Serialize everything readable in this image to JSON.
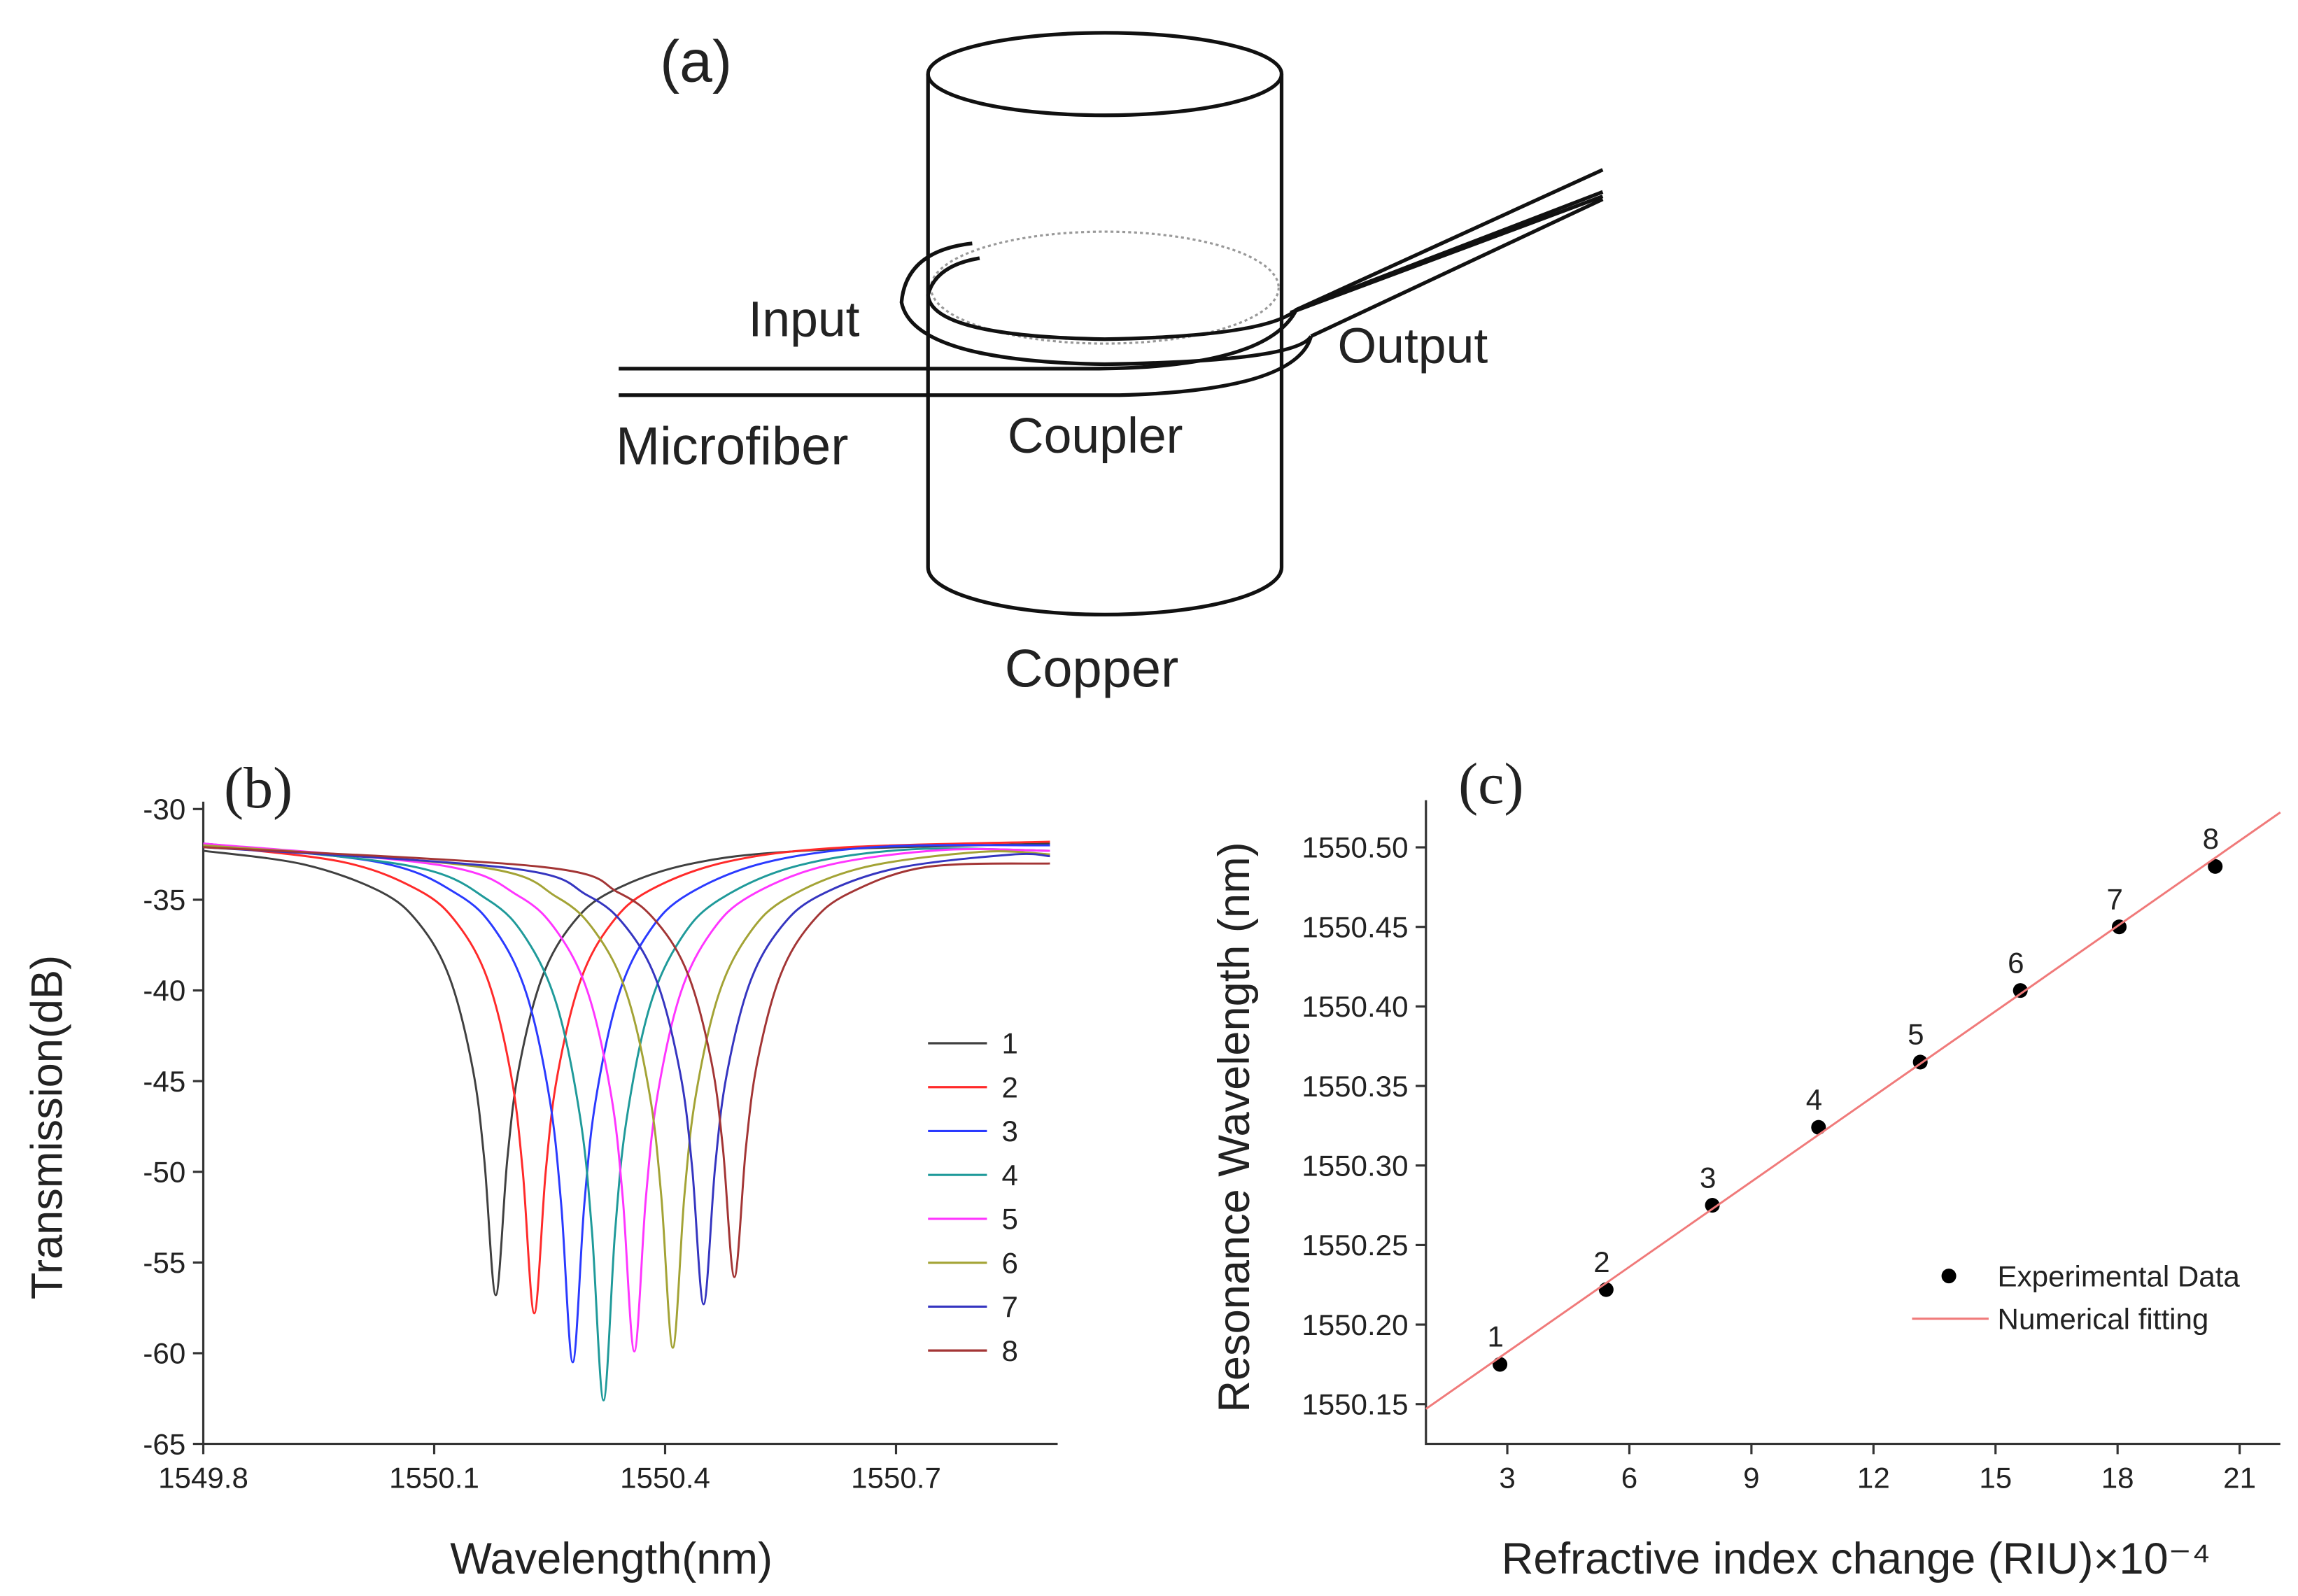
{
  "diagram": {
    "label": "(a)",
    "input": "Input",
    "output": "Output",
    "microfiber": "Microfiber",
    "coupler": "Coupler",
    "copper": "Copper"
  },
  "chart_data": [
    {
      "type": "line",
      "title": "(b)",
      "xlabel": "Wavelength(nm)",
      "ylabel": "Transmission(dB)",
      "xlim": [
        1549.8,
        1550.91
      ],
      "xticks": [
        1549.8,
        1550.1,
        1550.4,
        1550.7
      ],
      "ylim": [
        -65,
        -30
      ],
      "yticks": [
        -30,
        -35,
        -40,
        -45,
        -50,
        -55,
        -60,
        -65
      ],
      "legend": "right",
      "series": [
        {
          "name": "1",
          "color": "#404040",
          "x": [
            1549.8,
            1549.93,
            1550.03,
            1550.08,
            1550.12,
            1550.15,
            1550.165,
            1550.18,
            1550.195,
            1550.21,
            1550.24,
            1550.28,
            1550.33,
            1550.43,
            1550.58,
            1550.9
          ],
          "values": [
            -32.3,
            -33.05,
            -34.55,
            -36.3,
            -39.3,
            -44.3,
            -49.3,
            -56.8,
            -49.3,
            -44.3,
            -39.3,
            -36.3,
            -34.55,
            -33.05,
            -32.3,
            -31.9
          ]
        },
        {
          "name": "2",
          "color": "#ff2a2a",
          "x": [
            1549.8,
            1549.98,
            1550.08,
            1550.13,
            1550.17,
            1550.2,
            1550.215,
            1550.23,
            1550.245,
            1550.26,
            1550.29,
            1550.33,
            1550.38,
            1550.48,
            1550.63,
            1550.9
          ],
          "values": [
            -32.0,
            -32.91,
            -34.48,
            -36.32,
            -39.46,
            -44.7,
            -49.94,
            -57.8,
            -49.94,
            -44.7,
            -39.46,
            -36.32,
            -34.48,
            -32.91,
            -32.12,
            -31.8
          ]
        },
        {
          "name": "3",
          "color": "#2a3aff",
          "x": [
            1549.8,
            1550.03,
            1550.13,
            1550.18,
            1550.22,
            1550.25,
            1550.265,
            1550.28,
            1550.295,
            1550.31,
            1550.34,
            1550.38,
            1550.43,
            1550.53,
            1550.68,
            1550.9
          ],
          "values": [
            -31.9,
            -32.95,
            -34.69,
            -36.72,
            -40.2,
            -46,
            -51.8,
            -60.5,
            -51.8,
            -46,
            -40.2,
            -36.72,
            -34.69,
            -32.95,
            -32.08,
            -32.0
          ]
        },
        {
          "name": "4",
          "color": "#1f9a9a",
          "x": [
            1549.8,
            1550.07,
            1550.17,
            1550.22,
            1550.26,
            1550.29,
            1550.305,
            1550.32,
            1550.335,
            1550.35,
            1550.38,
            1550.42,
            1550.47,
            1550.57,
            1550.72,
            1550.9
          ],
          "values": [
            -31.9,
            -33.15,
            -35.01,
            -37.18,
            -40.9,
            -47.1,
            -53.3,
            -62.6,
            -53.3,
            -47.1,
            -40.9,
            -37.18,
            -35.01,
            -33.15,
            -32.22,
            -32.3
          ]
        },
        {
          "name": "5",
          "color": "#ff35ff",
          "x": [
            1549.8,
            1550.11,
            1550.21,
            1550.26,
            1550.3,
            1550.33,
            1550.345,
            1550.36,
            1550.375,
            1550.39,
            1550.42,
            1550.46,
            1550.51,
            1550.61,
            1550.76,
            1550.9
          ],
          "values": [
            -31.9,
            -33.11,
            -34.8,
            -36.78,
            -40.16,
            -45.8,
            -51.44,
            -59.9,
            -51.44,
            -45.8,
            -40.16,
            -36.78,
            -34.8,
            -33.11,
            -32.26,
            -32.3
          ]
        },
        {
          "name": "6",
          "color": "#a3a335",
          "x": [
            1549.8,
            1550.16,
            1550.26,
            1550.31,
            1550.35,
            1550.38,
            1550.395,
            1550.41,
            1550.425,
            1550.44,
            1550.47,
            1550.51,
            1550.56,
            1550.66,
            1550.81,
            1550.9
          ],
          "values": [
            -32.0,
            -33.2,
            -34.87,
            -36.82,
            -40.17,
            -45.75,
            -51.33,
            -59.7,
            -51.33,
            -45.75,
            -40.17,
            -36.82,
            -34.87,
            -33.2,
            -32.36,
            -32.5
          ]
        },
        {
          "name": "7",
          "color": "#3535c0",
          "x": [
            1549.8,
            1550.2,
            1550.3,
            1550.35,
            1550.39,
            1550.42,
            1550.435,
            1550.45,
            1550.465,
            1550.48,
            1550.51,
            1550.55,
            1550.6,
            1550.7,
            1550.85,
            1550.9
          ],
          "values": [
            -32.1,
            -33.27,
            -34.78,
            -36.55,
            -39.59,
            -44.65,
            -49.71,
            -57.3,
            -49.71,
            -44.65,
            -39.59,
            -36.55,
            -34.78,
            -33.27,
            -32.51,
            -32.6
          ]
        },
        {
          "name": "8",
          "color": "#a33535",
          "x": [
            1549.8,
            1550.24,
            1550.34,
            1550.39,
            1550.43,
            1550.46,
            1550.475,
            1550.49,
            1550.505,
            1550.52,
            1550.55,
            1550.59,
            1550.64,
            1550.74,
            1550.9
          ],
          "values": [
            -32.1,
            -33.19,
            -34.62,
            -36.28,
            -39.14,
            -43.9,
            -48.66,
            -55.8,
            -48.66,
            -43.9,
            -39.14,
            -36.28,
            -34.62,
            -33.19,
            -33.0
          ]
        }
      ]
    },
    {
      "type": "scatter",
      "title": "(c)",
      "xlabel": "Refractive index change (RIU)×10⁻⁴",
      "ylabel": "Resonance Wavelength (nm)",
      "xlim": [
        1,
        22
      ],
      "xticks": [
        3,
        6,
        9,
        12,
        15,
        18,
        21
      ],
      "ylim": [
        1550.125,
        1550.525
      ],
      "yticks": [
        1550.15,
        {
          "value": 1550.2,
          "label": "1550.20"
        },
        1550.25,
        {
          "value": 1550.3,
          "label": "1550.30"
        },
        1550.35,
        {
          "value": 1550.4,
          "label": "1550.40"
        },
        1550.45,
        {
          "value": 1550.5,
          "label": "1550.50"
        }
      ],
      "legend": "right",
      "series": [
        {
          "name": "Experimental Data",
          "type": "scatter",
          "color": "#000000",
          "x": [
            2.82,
            5.43,
            8.04,
            10.65,
            13.15,
            15.61,
            18.04,
            20.4
          ],
          "values": [
            1550.175,
            1550.222,
            1550.275,
            1550.324,
            1550.365,
            1550.41,
            1550.45,
            1550.488
          ],
          "point_labels": [
            "1",
            "2",
            "3",
            "4",
            "5",
            "6",
            "7",
            "8"
          ]
        },
        {
          "name": "Numerical fitting",
          "type": "line",
          "color": "#f07a7a",
          "x": [
            1,
            22
          ],
          "values": [
            1550.147,
            1550.522
          ]
        }
      ]
    }
  ]
}
